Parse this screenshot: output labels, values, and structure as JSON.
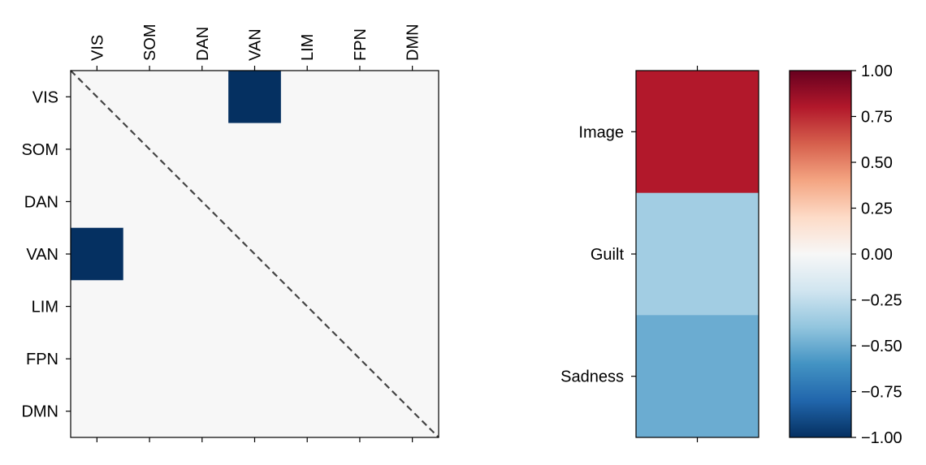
{
  "chart_data": [
    {
      "type": "heatmap",
      "panel": "network-matrix",
      "rows": [
        "VIS",
        "SOM",
        "DAN",
        "VAN",
        "LIM",
        "FPN",
        "DMN"
      ],
      "columns": [
        "VIS",
        "SOM",
        "DAN",
        "VAN",
        "LIM",
        "FPN",
        "DMN"
      ],
      "values": [
        [
          0,
          0,
          0,
          -1,
          0,
          0,
          0
        ],
        [
          0,
          0,
          0,
          0,
          0,
          0,
          0
        ],
        [
          0,
          0,
          0,
          0,
          0,
          0,
          0
        ],
        [
          -1,
          0,
          0,
          0,
          0,
          0,
          0
        ],
        [
          0,
          0,
          0,
          0,
          0,
          0,
          0
        ],
        [
          0,
          0,
          0,
          0,
          0,
          0,
          0
        ],
        [
          0,
          0,
          0,
          0,
          0,
          0,
          0
        ]
      ],
      "diagonal_line": "dashed",
      "x_tick_position": "top"
    },
    {
      "type": "heatmap",
      "panel": "condition-column",
      "rows": [
        "Image",
        "Guilt",
        "Sadness"
      ],
      "values": [
        0.8,
        -0.35,
        -0.5
      ]
    }
  ],
  "colorbar": {
    "colormap": "RdBu_r",
    "vmin": -1.0,
    "vmax": 1.0,
    "ticks": [
      {
        "value": 1.0,
        "label": "1.00"
      },
      {
        "value": 0.75,
        "label": "0.75"
      },
      {
        "value": 0.5,
        "label": "0.50"
      },
      {
        "value": 0.25,
        "label": "0.25"
      },
      {
        "value": 0.0,
        "label": "0.00"
      },
      {
        "value": -0.25,
        "label": "−0.25"
      },
      {
        "value": -0.5,
        "label": "−0.50"
      },
      {
        "value": -0.75,
        "label": "−0.75"
      },
      {
        "value": -1.0,
        "label": "−1.00"
      }
    ]
  }
}
